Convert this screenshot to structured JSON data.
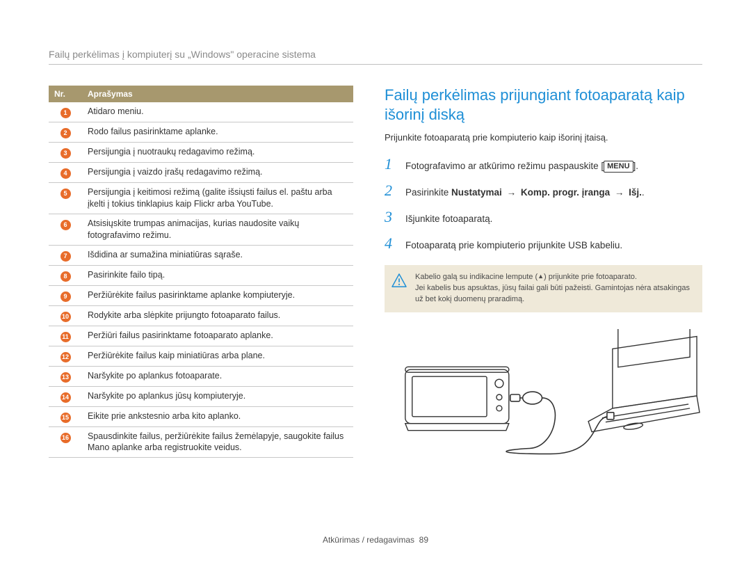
{
  "breadcrumb": "Failų perkėlimas į kompiuterį su „Windows\" operacine sistema",
  "table": {
    "headers": [
      "Nr.",
      "Aprašymas"
    ],
    "rows": [
      {
        "n": "1",
        "desc": "Atidaro meniu."
      },
      {
        "n": "2",
        "desc": "Rodo failus pasirinktame aplanke."
      },
      {
        "n": "3",
        "desc": "Persijungia į nuotraukų redagavimo režimą."
      },
      {
        "n": "4",
        "desc": "Persijungia į vaizdo įrašų redagavimo režimą."
      },
      {
        "n": "5",
        "desc": "Persijungia į keitimosi režimą (galite išsiųsti failus el. paštu arba įkelti į tokius tinklapius kaip Flickr arba YouTube."
      },
      {
        "n": "6",
        "desc": "Atsisiųskite trumpas animacijas, kurias naudosite vaikų fotografavimo režimu."
      },
      {
        "n": "7",
        "desc": "Išdidina ar sumažina miniatiūras sąraše."
      },
      {
        "n": "8",
        "desc": "Pasirinkite failo tipą."
      },
      {
        "n": "9",
        "desc": "Peržiūrėkite failus pasirinktame aplanke kompiuteryje."
      },
      {
        "n": "10",
        "desc": "Rodykite arba slėpkite prijungto fotoaparato failus."
      },
      {
        "n": "11",
        "desc": "Peržiūri failus pasirinktame fotoaparato aplanke."
      },
      {
        "n": "12",
        "desc": "Peržiūrėkite failus kaip miniatiūras arba plane."
      },
      {
        "n": "13",
        "desc": "Naršykite po aplankus fotoaparate."
      },
      {
        "n": "14",
        "desc": "Naršykite po aplankus jūsų kompiuteryje."
      },
      {
        "n": "15",
        "desc": "Eikite prie ankstesnio arba kito aplanko."
      },
      {
        "n": "16",
        "desc": "Spausdinkite failus, peržiūrėkite failus žemėlapyje, saugokite failus Mano aplanke arba registruokite veidus."
      }
    ]
  },
  "section_title": "Failų perkėlimas prijungiant fotoaparatą kaip išorinį diską",
  "intro": "Prijunkite fotoaparatą prie kompiuterio kaip išorinį įtaisą.",
  "steps": [
    {
      "n": "1",
      "pre": "Fotografavimo ar atkūrimo režimu paspauskite [",
      "btn": "MENU",
      "post": "]."
    },
    {
      "n": "2",
      "text_pre": "Pasirinkite ",
      "bold1": "Nustatymai",
      "arrow1": " → ",
      "bold2": "Komp. progr. įranga",
      "arrow2": " → ",
      "bold3": "Išj.",
      "text_post": "."
    },
    {
      "n": "3",
      "text": "Išjunkite fotoaparatą."
    },
    {
      "n": "4",
      "text": "Fotoaparatą prie kompiuterio prijunkite USB kabeliu."
    }
  ],
  "warning": {
    "line1_pre": "Kabelio galą su indikacine lempute (",
    "line1_post": ") prijunkite prie fotoaparato.",
    "line2": "Jei kabelis bus apsuktas, jūsų failai gali būti pažeisti. Gamintojas nėra atsakingas už bet kokį duomenų praradimą."
  },
  "footer": {
    "label": "Atkūrimas / redagavimas",
    "page": "89"
  },
  "colors": {
    "header_bg": "#a7986e",
    "circle_bg": "#e86c2a",
    "accent": "#1f8fd6",
    "warn_bg": "#efe9d9"
  }
}
